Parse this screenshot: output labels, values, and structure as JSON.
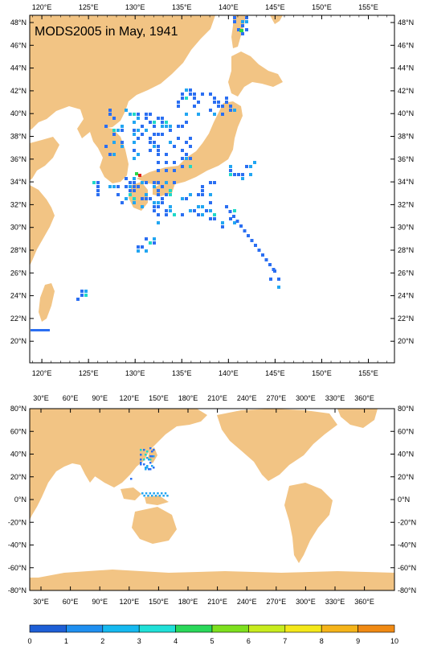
{
  "top_map": {
    "title": "MODS2005 in May, 1941",
    "lon_labels": [
      "120°E",
      "125°E",
      "130°E",
      "135°E",
      "140°E",
      "145°E",
      "150°E",
      "155°E"
    ],
    "lat_labels": [
      "48°N",
      "46°N",
      "44°N",
      "42°N",
      "40°N",
      "38°N",
      "36°N",
      "34°N",
      "32°N",
      "30°N",
      "28°N",
      "26°N",
      "24°N",
      "22°N",
      "20°N"
    ]
  },
  "bottom_map": {
    "lon_labels": [
      "30°E",
      "60°E",
      "90°E",
      "120°E",
      "150°E",
      "180°E",
      "210°E",
      "240°E",
      "270°E",
      "300°E",
      "330°E",
      "360°E"
    ],
    "lat_labels": [
      "80°N",
      "60°N",
      "40°N",
      "20°N",
      "0°N",
      "-20°N",
      "-40°N",
      "-60°N",
      "-80°N"
    ]
  },
  "colorbar": {
    "labels": [
      "0",
      "1",
      "2",
      "3",
      "4",
      "5",
      "6",
      "7",
      "8",
      "9",
      "10"
    ],
    "colors": [
      "#1e5fd6",
      "#1f8ff0",
      "#16b9f0",
      "#20e0d8",
      "#2ad85a",
      "#7ee01e",
      "#c8ec1e",
      "#f4e81a",
      "#f5b41a",
      "#f08a14",
      "#e05a10"
    ]
  },
  "colors": {
    "land": "#f2c484",
    "obs_main": "#2b6ff2",
    "obs_light": "#22a6f2",
    "obs_mid": "#20d8c8",
    "obs_high": "#2ad84a",
    "obs_peak": "#e0261a"
  }
}
